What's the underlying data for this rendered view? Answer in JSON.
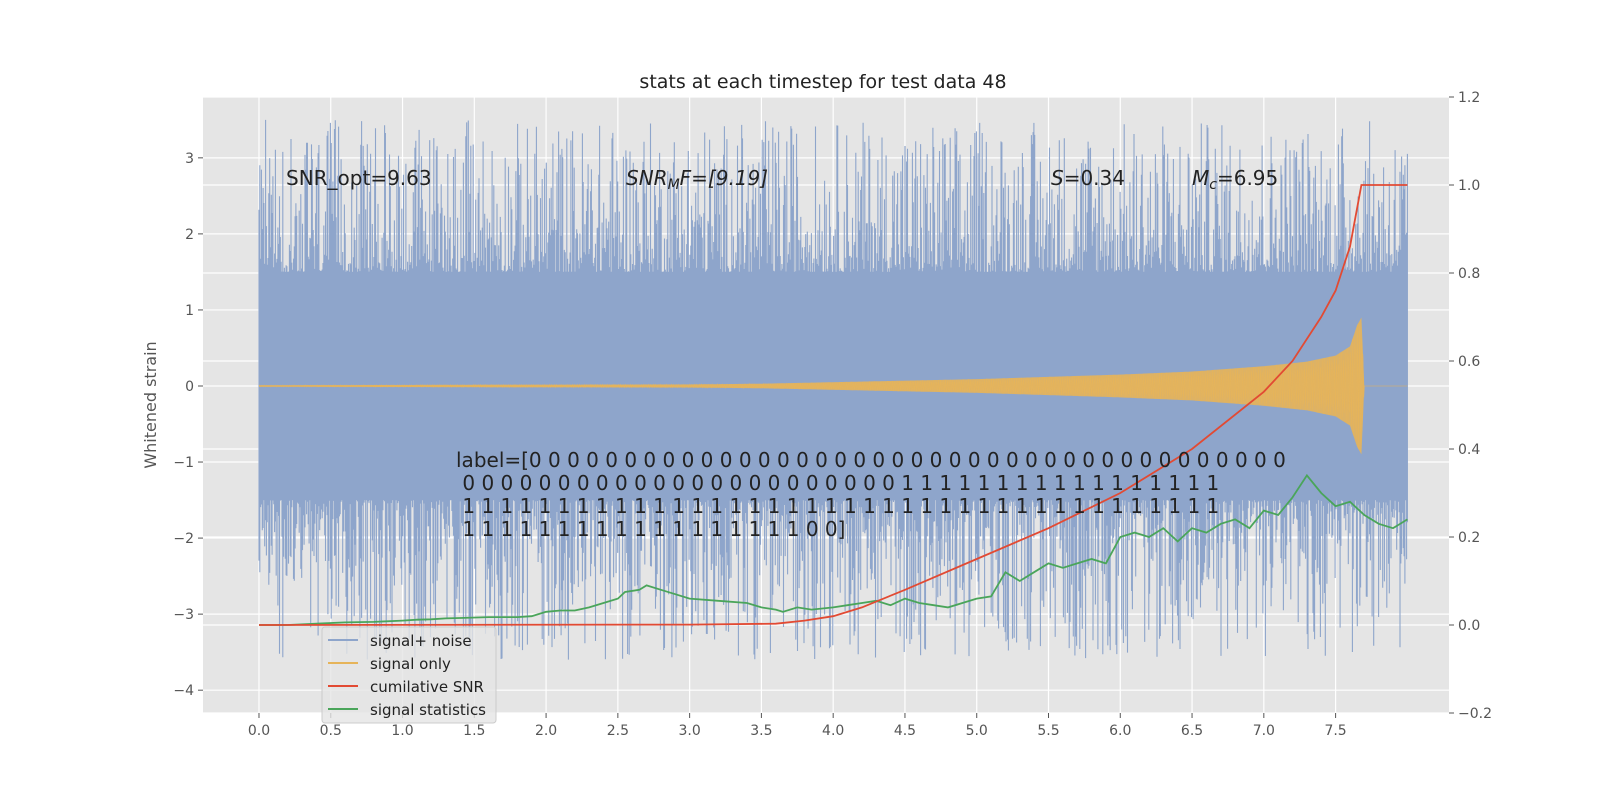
{
  "chart_data": {
    "type": "line",
    "title": "stats at each timestep for test data 48",
    "ylabel": "Whitened strain",
    "xlabel": "",
    "xlim": [
      -0.39,
      8.29
    ],
    "ylim": [
      -4.3,
      3.8
    ],
    "ylim_right": [
      -0.2,
      1.2
    ],
    "grid": true,
    "legend_placement": "lower-left",
    "x_ticks": [
      0.0,
      0.5,
      1.0,
      1.5,
      2.0,
      2.5,
      3.0,
      3.5,
      4.0,
      4.5,
      5.0,
      5.5,
      6.0,
      6.5,
      7.0,
      7.5
    ],
    "x_tick_labels": [
      "0.0",
      "0.5",
      "1.0",
      "1.5",
      "2.0",
      "2.5",
      "3.0",
      "3.5",
      "4.0",
      "4.5",
      "5.0",
      "5.5",
      "6.0",
      "6.5",
      "7.0",
      "7.5"
    ],
    "y_ticks": [
      -4,
      -3,
      -2,
      -1,
      0,
      1,
      2,
      3
    ],
    "y_tick_labels": [
      "−4",
      "−3",
      "−2",
      "−1",
      "0",
      "1",
      "2",
      "3"
    ],
    "y_right_ticks": [
      -0.2,
      0.0,
      0.2,
      0.4,
      0.6,
      0.8,
      1.0,
      1.2
    ],
    "y_right_tick_labels": [
      "−0.2",
      "0.0",
      "0.2",
      "0.4",
      "0.6",
      "0.8",
      "1.0",
      "1.2"
    ],
    "annotations": {
      "snr_opt": "SNR_opt=9.63",
      "snr_mf_main": "SNR",
      "snr_mf_sub": "M",
      "snr_mf_rest": "F=[9.19]",
      "spin_symbol": "S",
      "spin_value": "=0.34",
      "mc_symbol": "M",
      "mc_sub": "c",
      "mc_value": "=6.95",
      "label_lines": [
        "label=[0 0 0 0 0 0 0 0 0 0 0 0 0 0 0 0 0 0 0 0 0 0 0 0 0 0 0 0 0 0 0 0 0 0 0 0 0 0 0 0",
        " 0 0 0 0 0 0 0 0 0 0 0 0 0 0 0 0 0 0 0 0 0 0 0 1 1 1 1 1 1 1 1 1 1 1 1 1 1 1 1 1",
        " 1 1 1 1 1 1 1 1 1 1 1 1 1 1 1 1 1 1 1 1 1 1 1 1 1 1 1 1 1 1 1 1 1 1 1 1 1 1 1 1",
        " 1 1 1 1 1 1 1 1 1 1 1 1 1 1 1 1 1 1 0 0]"
      ]
    },
    "legend": [
      "signal+ noise",
      "signal only",
      "cumilative SNR",
      "signal statistics"
    ],
    "colors": {
      "signal_noise": "#8ea5cb",
      "signal_only": "#e6b45a",
      "cumulative_snr": "#e24a33",
      "signal_statistics": "#4aa55a",
      "plot_background": "#e5e5e5",
      "grid": "#ffffff"
    },
    "series": [
      {
        "name": "signal+ noise",
        "axis": "left",
        "kind": "noise-band",
        "x_range": [
          0.0,
          8.0
        ],
        "typical_range": [
          -1.5,
          1.5
        ],
        "extreme_range": [
          -3.6,
          3.5
        ]
      },
      {
        "name": "signal only",
        "axis": "left",
        "kind": "chirp-envelope",
        "x": [
          0.0,
          3.0,
          3.5,
          4.0,
          4.5,
          5.0,
          5.5,
          6.0,
          6.5,
          7.0,
          7.3,
          7.5,
          7.6,
          7.65,
          7.68,
          7.7,
          8.0
        ],
        "amplitude": [
          0.01,
          0.02,
          0.03,
          0.05,
          0.07,
          0.09,
          0.12,
          0.15,
          0.19,
          0.26,
          0.32,
          0.4,
          0.52,
          0.8,
          0.9,
          0.0,
          0.0
        ]
      },
      {
        "name": "cumilative SNR",
        "axis": "right",
        "x": [
          0.0,
          3.0,
          3.6,
          3.8,
          4.0,
          4.2,
          4.5,
          5.0,
          5.5,
          6.0,
          6.5,
          7.0,
          7.2,
          7.4,
          7.5,
          7.6,
          7.68,
          8.0
        ],
        "y": [
          0.0,
          0.001,
          0.003,
          0.01,
          0.02,
          0.04,
          0.08,
          0.15,
          0.22,
          0.3,
          0.4,
          0.53,
          0.6,
          0.7,
          0.76,
          0.86,
          1.0,
          1.0
        ]
      },
      {
        "name": "signal statistics",
        "axis": "right",
        "x": [
          0.0,
          0.2,
          0.4,
          0.6,
          0.8,
          1.0,
          1.1,
          1.2,
          1.3,
          1.4,
          1.6,
          1.8,
          1.9,
          2.0,
          2.1,
          2.2,
          2.3,
          2.4,
          2.5,
          2.55,
          2.65,
          2.7,
          2.8,
          2.9,
          3.0,
          3.2,
          3.4,
          3.5,
          3.6,
          3.65,
          3.75,
          3.85,
          4.0,
          4.1,
          4.2,
          4.3,
          4.4,
          4.5,
          4.6,
          4.7,
          4.8,
          4.9,
          5.0,
          5.1,
          5.2,
          5.3,
          5.4,
          5.5,
          5.6,
          5.7,
          5.8,
          5.9,
          6.0,
          6.1,
          6.2,
          6.3,
          6.4,
          6.5,
          6.6,
          6.7,
          6.8,
          6.9,
          7.0,
          7.1,
          7.2,
          7.3,
          7.4,
          7.5,
          7.6,
          7.7,
          7.8,
          7.9,
          8.0
        ],
        "y": [
          0.0,
          0.0,
          0.003,
          0.006,
          0.007,
          0.01,
          0.012,
          0.013,
          0.015,
          0.016,
          0.018,
          0.018,
          0.02,
          0.03,
          0.033,
          0.033,
          0.04,
          0.05,
          0.06,
          0.075,
          0.08,
          0.09,
          0.08,
          0.07,
          0.06,
          0.055,
          0.05,
          0.04,
          0.035,
          0.03,
          0.04,
          0.035,
          0.04,
          0.045,
          0.05,
          0.055,
          0.045,
          0.06,
          0.05,
          0.045,
          0.04,
          0.05,
          0.06,
          0.065,
          0.12,
          0.1,
          0.12,
          0.14,
          0.13,
          0.14,
          0.15,
          0.14,
          0.2,
          0.21,
          0.2,
          0.22,
          0.19,
          0.22,
          0.21,
          0.23,
          0.24,
          0.22,
          0.26,
          0.25,
          0.29,
          0.34,
          0.3,
          0.27,
          0.28,
          0.25,
          0.23,
          0.22,
          0.24
        ]
      }
    ]
  }
}
